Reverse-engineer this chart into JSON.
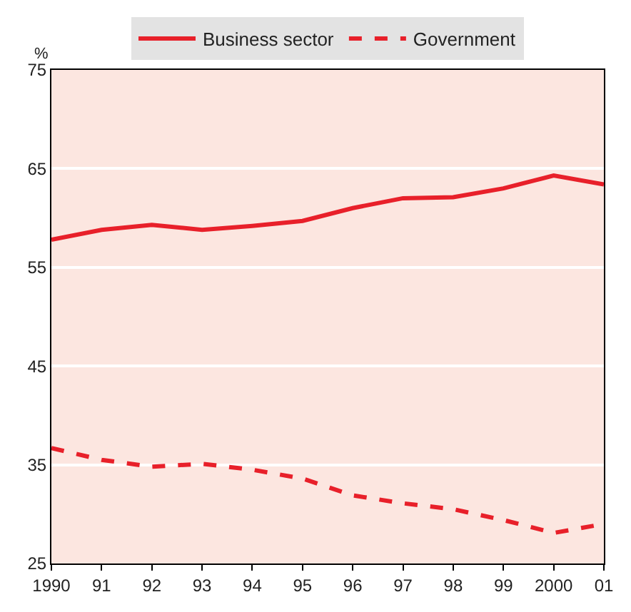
{
  "chart_data": {
    "type": "line",
    "ylabel": "%",
    "x": [
      1990,
      1991,
      1992,
      1993,
      1994,
      1995,
      1996,
      1997,
      1998,
      1999,
      2000,
      2001
    ],
    "series": [
      {
        "name": "Business sector",
        "color": "#e8202a",
        "line_style": "solid",
        "values": [
          57.8,
          58.8,
          59.3,
          58.8,
          59.2,
          59.7,
          61.0,
          62.0,
          62.1,
          63.0,
          64.3,
          63.4
        ]
      },
      {
        "name": "Government",
        "color": "#e8202a",
        "line_style": "dashed",
        "values": [
          36.7,
          35.5,
          34.8,
          35.1,
          34.5,
          33.6,
          31.9,
          31.1,
          30.5,
          29.4,
          28.1,
          29.0
        ]
      }
    ],
    "xlim": [
      1990,
      2001
    ],
    "xticks": [
      1990,
      {
        "value": 1991,
        "label": "91"
      },
      {
        "value": 1992,
        "label": "92"
      },
      {
        "value": 1993,
        "label": "93"
      },
      {
        "value": 1994,
        "label": "94"
      },
      {
        "value": 1995,
        "label": "95"
      },
      {
        "value": 1996,
        "label": "96"
      },
      {
        "value": 1997,
        "label": "97"
      },
      {
        "value": 1998,
        "label": "98"
      },
      {
        "value": 1999,
        "label": "99"
      },
      2000,
      {
        "value": 2001,
        "label": "01"
      }
    ],
    "ylim": [
      25,
      75
    ],
    "yticks": [
      25,
      35,
      45,
      55,
      65,
      75
    ],
    "grid": "y",
    "legend": "top",
    "marker": "none"
  }
}
